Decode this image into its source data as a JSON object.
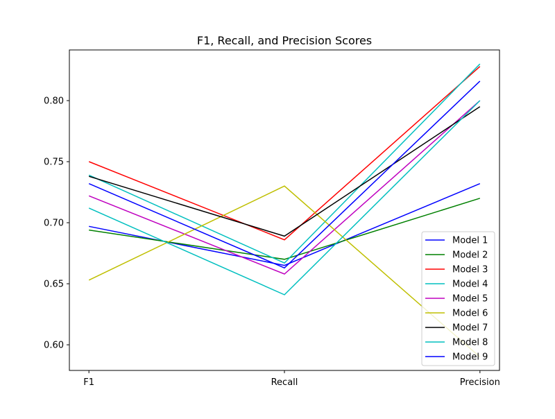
{
  "chart_data": {
    "type": "line",
    "title": "F1, Recall, and Precision Scores",
    "xlabel": "",
    "ylabel": "",
    "categories": [
      "F1",
      "Recall",
      "Precision"
    ],
    "ylim": [
      0.579,
      0.8415
    ],
    "yticks": [
      0.6,
      0.65,
      0.7,
      0.75,
      0.8
    ],
    "ytick_labels": [
      "0.60",
      "0.65",
      "0.70",
      "0.75",
      "0.80"
    ],
    "grid": false,
    "legend_position": "lower right",
    "series": [
      {
        "name": "Model 1",
        "color": "#0000ff",
        "values": [
          0.697,
          0.665,
          0.732
        ]
      },
      {
        "name": "Model 2",
        "color": "#008000",
        "values": [
          0.694,
          0.67,
          0.72
        ]
      },
      {
        "name": "Model 3",
        "color": "#ff0000",
        "values": [
          0.75,
          0.686,
          0.828
        ]
      },
      {
        "name": "Model 4",
        "color": "#00bfbf",
        "values": [
          0.739,
          0.667,
          0.83
        ]
      },
      {
        "name": "Model 5",
        "color": "#bf00bf",
        "values": [
          0.722,
          0.658,
          0.8
        ]
      },
      {
        "name": "Model 6",
        "color": "#bfbf00",
        "values": [
          0.653,
          0.73,
          0.59
        ]
      },
      {
        "name": "Model 7",
        "color": "#000000",
        "values": [
          0.738,
          0.689,
          0.795
        ]
      },
      {
        "name": "Model 8",
        "color": "#00bfbf",
        "values": [
          0.712,
          0.641,
          0.8
        ]
      },
      {
        "name": "Model 9",
        "color": "#0000ff",
        "values": [
          0.732,
          0.663,
          0.816
        ]
      }
    ]
  }
}
